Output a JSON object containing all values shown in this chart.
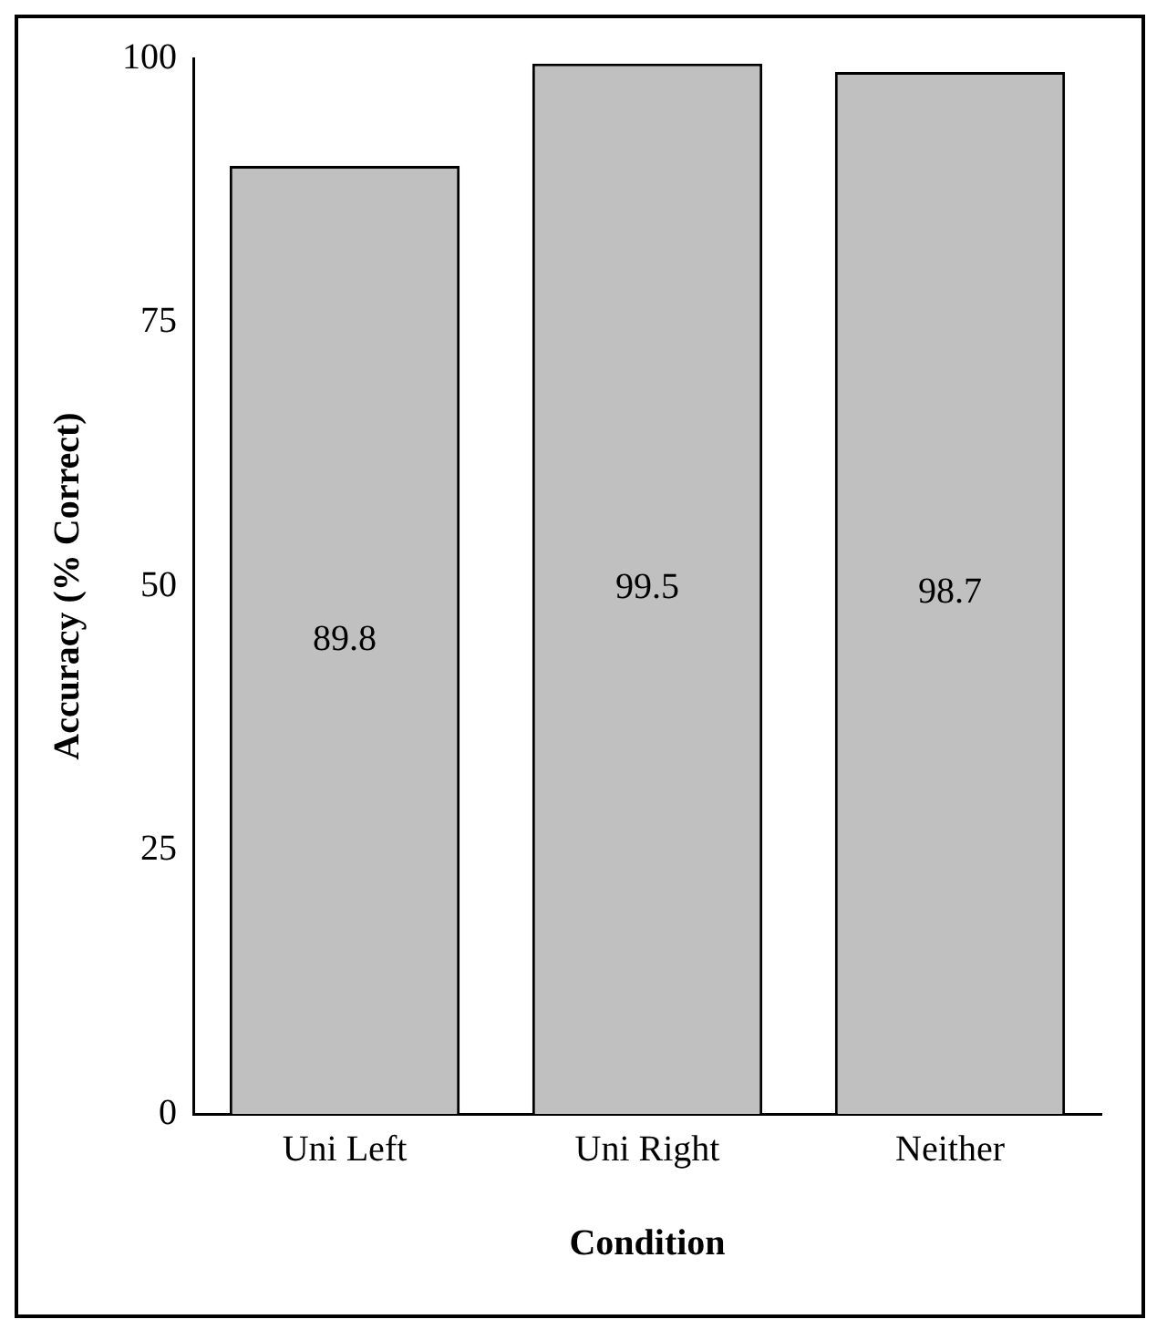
{
  "chart_data": {
    "type": "bar",
    "xlabel": "Condition",
    "ylabel": "Accuracy (% Correct)",
    "categories": [
      "Uni Left",
      "Uni Right",
      "Neither"
    ],
    "values": [
      89.8,
      99.5,
      98.7
    ],
    "color": "#c0c0c0",
    "ylim": [
      0,
      100
    ],
    "yticks": [
      0,
      25,
      50,
      75,
      100
    ],
    "grid": false,
    "legend": false,
    "data_labels": true
  }
}
